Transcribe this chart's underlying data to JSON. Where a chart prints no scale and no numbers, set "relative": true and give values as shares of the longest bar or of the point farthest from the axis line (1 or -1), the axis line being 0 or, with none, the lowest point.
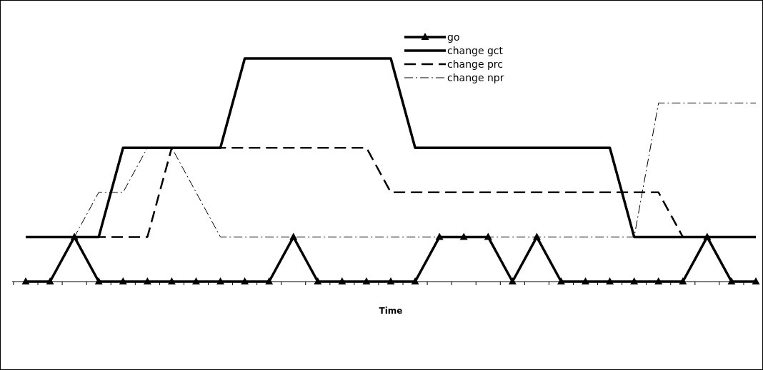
{
  "chart_data": {
    "type": "line",
    "xlabel": "Time",
    "relative": true,
    "legend": "top",
    "grid": false,
    "categories": [
      null,
      null,
      null,
      null,
      null,
      null,
      null,
      null,
      null,
      null,
      null,
      null,
      null,
      null,
      null,
      null,
      null,
      null,
      null,
      null,
      null,
      null,
      null,
      null,
      null,
      null,
      null,
      null,
      null,
      null,
      null
    ],
    "series": [
      {
        "name": "go",
        "color": "#000000",
        "marker": "triangle",
        "line_style": "solid",
        "values": [
          0,
          0,
          0.2,
          0,
          0,
          0,
          0,
          0,
          0,
          0,
          0,
          0.2,
          0,
          0,
          0,
          0,
          0,
          0.2,
          0.2,
          0.2,
          0,
          0.2,
          0,
          0,
          0,
          0,
          0,
          0,
          0.2,
          0,
          0
        ]
      },
      {
        "name": "change gct",
        "color": "#000000",
        "marker": "none",
        "line_style": "solid",
        "values": [
          0.2,
          0.2,
          0.2,
          0.2,
          0.6,
          0.6,
          0.6,
          0.6,
          0.6,
          1,
          1,
          1,
          1,
          1,
          1,
          1,
          0.6,
          0.6,
          0.6,
          0.6,
          0.6,
          0.6,
          0.6,
          0.6,
          0.6,
          0.2,
          0.2,
          0.2,
          0.2,
          0.2,
          0.2
        ]
      },
      {
        "name": "change prc",
        "color": "#000000",
        "marker": "none",
        "line_style": "dashed",
        "values": [
          0.2,
          0.2,
          0.2,
          0.2,
          0.2,
          0.2,
          0.6,
          0.6,
          0.6,
          0.6,
          0.6,
          0.6,
          0.6,
          0.6,
          0.6,
          0.4,
          0.4,
          0.4,
          0.4,
          0.4,
          0.4,
          0.4,
          0.4,
          0.4,
          0.4,
          0.4,
          0.4,
          0.2,
          0.2,
          0.2,
          0.2
        ]
      },
      {
        "name": "change npr",
        "color": "#000000",
        "marker": "none",
        "line_style": "dashdot",
        "values": [
          0.2,
          0.2,
          0.2,
          0.4,
          0.4,
          0.6,
          0.6,
          0.4,
          0.2,
          0.2,
          0.2,
          0.2,
          0.2,
          0.2,
          0.2,
          0.2,
          0.2,
          0.2,
          0.2,
          0.2,
          0.2,
          0.2,
          0.2,
          0.2,
          0.2,
          0.2,
          0.8,
          0.8,
          0.8,
          0.8,
          0.8
        ]
      }
    ]
  }
}
